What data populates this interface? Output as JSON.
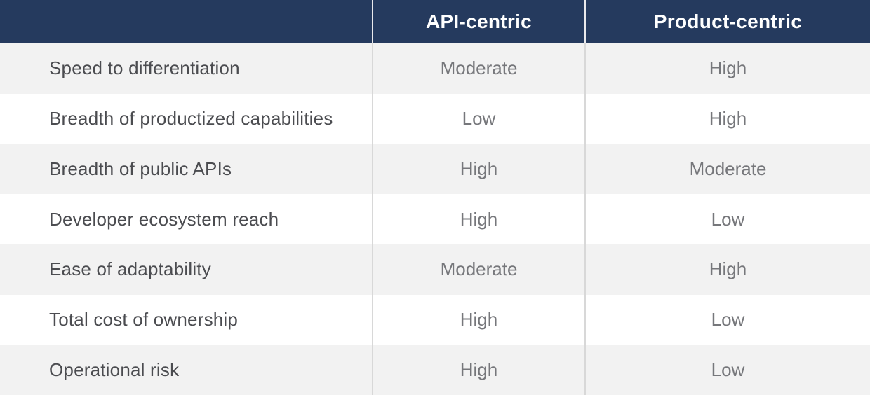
{
  "chart_data": {
    "type": "table",
    "title": "",
    "columns": [
      "",
      "API-centric",
      "Product-centric"
    ],
    "rows": [
      [
        "Speed to differentiation",
        "Moderate",
        "High"
      ],
      [
        "Breadth of productized capabilities",
        "Low",
        "High"
      ],
      [
        "Breadth of public APIs",
        "High",
        "Moderate"
      ],
      [
        "Developer ecosystem reach",
        "High",
        "Low"
      ],
      [
        "Ease of adaptability",
        "Moderate",
        "High"
      ],
      [
        "Total cost of ownership",
        "High",
        "Low"
      ],
      [
        "Operational risk",
        "High",
        "Low"
      ]
    ],
    "layout_hints": {
      "header_style": "dark navy band, bold white centered text",
      "row_striping": "odd rows light gray, even rows white",
      "value_alignment": "center",
      "label_alignment": "left"
    }
  },
  "colors": {
    "header_bg": "#253A5E",
    "header_text": "#FFFFFF",
    "header_divider": "#E9E9EC",
    "row_alt_bg": "#F2F2F2",
    "row_bg": "#FFFFFF",
    "label_text": "#4B4C50",
    "value_text": "#76777B",
    "divider": "#D8D8D8"
  }
}
